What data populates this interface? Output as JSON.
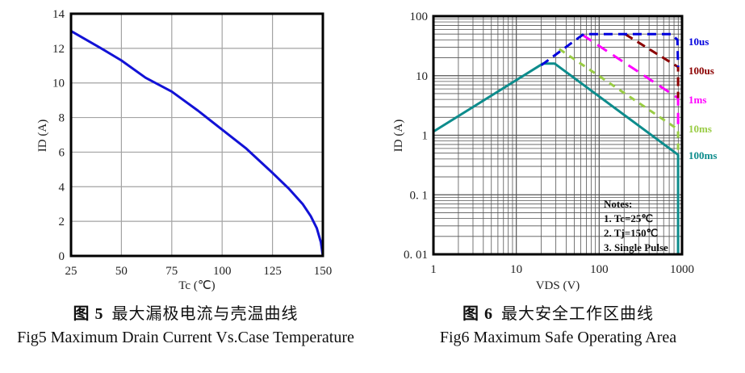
{
  "figures": [
    {
      "zh_prefix": "图 5",
      "zh_title": "最大漏极电流与壳温曲线",
      "en_title": "Fig5 Maximum Drain Current Vs.Case Temperature"
    },
    {
      "zh_prefix": "图 6",
      "zh_title": "最大安全工作区曲线",
      "en_title": "Fig6 Maximum Safe Operating Area"
    }
  ],
  "chart_data": [
    {
      "type": "line",
      "title": "",
      "xlabel": "Tc (℃)",
      "ylabel": "ID (A)",
      "x_scale": "linear",
      "y_scale": "linear",
      "xlim": [
        25,
        150
      ],
      "ylim": [
        0,
        14
      ],
      "xticks": [
        25,
        50,
        75,
        100,
        125,
        150
      ],
      "yticks": [
        0,
        2,
        4,
        6,
        8,
        10,
        12,
        14
      ],
      "grid": "major",
      "grid_color": "#a3a3a3",
      "series": [
        {
          "name": "max-drain-current",
          "color": "#1212d6",
          "dash": null,
          "width": 3,
          "points": [
            [
              25,
              13.0
            ],
            [
              40,
              12.0
            ],
            [
              50,
              11.3
            ],
            [
              62,
              10.3
            ],
            [
              75,
              9.5
            ],
            [
              88,
              8.4
            ],
            [
              100,
              7.3
            ],
            [
              112,
              6.2
            ],
            [
              125,
              4.8
            ],
            [
              133,
              3.9
            ],
            [
              140,
              3.0
            ],
            [
              144,
              2.3
            ],
            [
              147,
              1.6
            ],
            [
              149,
              0.8
            ],
            [
              150,
              0
            ]
          ]
        }
      ]
    },
    {
      "type": "line",
      "title": "",
      "xlabel": "VDS (V)",
      "ylabel": "ID (A)",
      "x_scale": "log",
      "y_scale": "log",
      "xlim": [
        1,
        1000
      ],
      "ylim": [
        0.01,
        100
      ],
      "xticks": [
        1,
        10,
        100,
        1000
      ],
      "yticks": [
        100,
        10,
        1,
        0.1,
        0.01
      ],
      "ytick_labels": [
        "100",
        "10",
        "1",
        "0. 1",
        "0. 01"
      ],
      "grid": "log-minor",
      "grid_color": "#555555",
      "notes": {
        "lines": [
          "Notes:",
          "1. Tc=25℃",
          "2. Tj=150℃",
          "3. Single Pulse"
        ]
      },
      "series": [
        {
          "name": "10us",
          "label": "10us",
          "color": "#0000dd",
          "dash": [
            11,
            7
          ],
          "width": 3,
          "label_at_id": 37,
          "points": [
            [
              20,
              15
            ],
            [
              65,
              50
            ],
            [
              740,
              50
            ],
            [
              880,
              40
            ],
            [
              895,
              14
            ]
          ]
        },
        {
          "name": "100us",
          "label": "100us",
          "color": "#8b0000",
          "dash": [
            11,
            7
          ],
          "width": 3,
          "label_at_id": 12,
          "points": [
            [
              205,
              50
            ],
            [
              895,
              14
            ],
            [
              895,
              4.2
            ]
          ]
        },
        {
          "name": "1ms",
          "label": "1ms",
          "color": "#ff00ff",
          "dash": [
            14,
            9
          ],
          "width": 3,
          "label_at_id": 3.9,
          "points": [
            [
              62,
              49
            ],
            [
              895,
              4.2
            ],
            [
              895,
              1.25
            ]
          ]
        },
        {
          "name": "10ms",
          "label": "10ms",
          "color": "#99cc44",
          "dash": [
            8,
            7
          ],
          "width": 3,
          "label_at_id": 1.26,
          "points": [
            [
              33,
              28
            ],
            [
              895,
              1.25
            ],
            [
              895,
              0.47
            ]
          ]
        },
        {
          "name": "100ms",
          "label": "100ms",
          "color": "#0d8c8c",
          "dash": null,
          "width": 3,
          "label_at_id": 0.45,
          "points": [
            [
              1,
              1.15
            ],
            [
              21,
              16
            ],
            [
              29,
              16
            ],
            [
              895,
              0.47
            ],
            [
              895,
              0.01
            ]
          ]
        }
      ]
    }
  ]
}
